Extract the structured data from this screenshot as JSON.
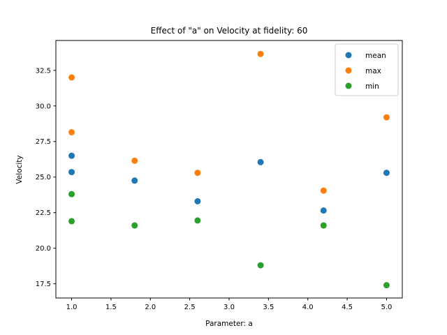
{
  "chart_data": {
    "type": "scatter",
    "title": "Effect of \"a\" on Velocity at fidelity: 60",
    "xlabel": "Parameter: a",
    "ylabel": "Velocity",
    "xlim": [
      0.8,
      5.2
    ],
    "ylim": [
      16.5,
      34.6
    ],
    "xticks": [
      1.0,
      1.5,
      2.0,
      2.5,
      3.0,
      3.5,
      4.0,
      4.5,
      5.0
    ],
    "xtick_labels": [
      "1.0",
      "1.5",
      "2.0",
      "2.5",
      "3.0",
      "3.5",
      "4.0",
      "4.5",
      "5.0"
    ],
    "yticks": [
      17.5,
      20.0,
      22.5,
      25.0,
      27.5,
      30.0,
      32.5
    ],
    "ytick_labels": [
      "17.5",
      "20.0",
      "22.5",
      "25.0",
      "27.5",
      "30.0",
      "32.5"
    ],
    "grid": false,
    "legend_position": "top-right",
    "series": [
      {
        "name": "mean",
        "color": "#1f77b4",
        "points": [
          [
            1.0,
            26.5
          ],
          [
            1.0,
            25.35
          ],
          [
            1.8,
            24.75
          ],
          [
            2.6,
            23.3
          ],
          [
            3.4,
            26.05
          ],
          [
            4.2,
            22.65
          ],
          [
            5.0,
            25.3
          ]
        ]
      },
      {
        "name": "max",
        "color": "#ff7f0e",
        "points": [
          [
            1.0,
            32.0
          ],
          [
            1.0,
            28.15
          ],
          [
            1.8,
            26.15
          ],
          [
            2.6,
            25.3
          ],
          [
            3.4,
            33.65
          ],
          [
            4.2,
            24.05
          ],
          [
            5.0,
            29.2
          ]
        ]
      },
      {
        "name": "min",
        "color": "#2ca02c",
        "points": [
          [
            1.0,
            23.8
          ],
          [
            1.0,
            21.9
          ],
          [
            1.8,
            21.6
          ],
          [
            2.6,
            21.95
          ],
          [
            3.4,
            18.8
          ],
          [
            4.2,
            21.6
          ],
          [
            5.0,
            17.4
          ]
        ]
      }
    ]
  }
}
